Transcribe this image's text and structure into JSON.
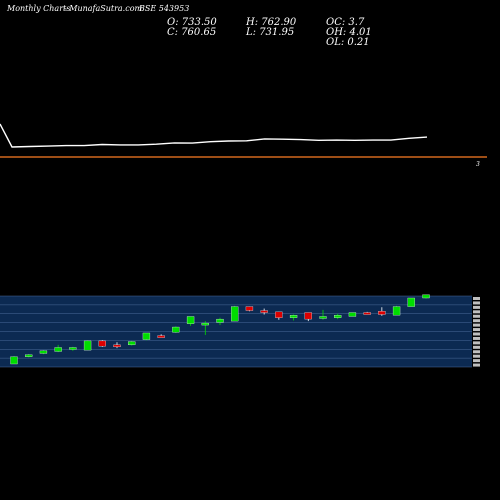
{
  "header": {
    "period": "Monthly Charts",
    "site": "- MunafaSutra.com",
    "symbol": "BSE 543953"
  },
  "ohlc": {
    "open": "O: 733.50",
    "close": "C: 760.65",
    "high": "H: 762.90",
    "low": "L: 731.95",
    "oc": "OC: 3.7",
    "oh": "OH: 4.01",
    "ol": "OL: 0.21"
  },
  "colors": {
    "background": "#000000",
    "line": "#ffffff",
    "orange_line": "#d2691e",
    "up": "#00dd00",
    "down": "#dd0000",
    "band": "#0c2a52",
    "grid": "#4a6a9a",
    "price_label": "#ffffff"
  },
  "chart_data": [
    {
      "type": "line",
      "series": [
        {
          "values": [
            1.0,
            0.0,
            0.02,
            0.04,
            0.06,
            0.06,
            0.11,
            0.09,
            0.09,
            0.12,
            0.18,
            0.17,
            0.23,
            0.26,
            0.27,
            0.35,
            0.34,
            0.32,
            0.29,
            0.3,
            0.29,
            0.3,
            0.3,
            0.38,
            0.43
          ]
        }
      ],
      "reference_line_label": "3"
    },
    {
      "type": "candlestick",
      "candles": [
        {
          "o": 0.0,
          "h": 0.12,
          "l": 0.0,
          "c": 0.11
        },
        {
          "o": 0.12,
          "h": 0.15,
          "l": 0.1,
          "c": 0.14
        },
        {
          "o": 0.16,
          "h": 0.21,
          "l": 0.15,
          "c": 0.2
        },
        {
          "o": 0.19,
          "h": 0.29,
          "l": 0.18,
          "c": 0.25
        },
        {
          "o": 0.23,
          "h": 0.26,
          "l": 0.2,
          "c": 0.25
        },
        {
          "o": 0.21,
          "h": 0.36,
          "l": 0.21,
          "c": 0.35
        },
        {
          "o": 0.35,
          "h": 0.36,
          "l": 0.26,
          "c": 0.27
        },
        {
          "o": 0.29,
          "h": 0.33,
          "l": 0.24,
          "c": 0.27
        },
        {
          "o": 0.29,
          "h": 0.35,
          "l": 0.28,
          "c": 0.34
        },
        {
          "o": 0.37,
          "h": 0.47,
          "l": 0.36,
          "c": 0.47
        },
        {
          "o": 0.43,
          "h": 0.45,
          "l": 0.41,
          "c": 0.42
        },
        {
          "o": 0.48,
          "h": 0.57,
          "l": 0.47,
          "c": 0.56
        },
        {
          "o": 0.61,
          "h": 0.72,
          "l": 0.58,
          "c": 0.72
        },
        {
          "o": 0.61,
          "h": 0.65,
          "l": 0.44,
          "c": 0.62
        },
        {
          "o": 0.63,
          "h": 0.7,
          "l": 0.59,
          "c": 0.68
        },
        {
          "o": 0.65,
          "h": 0.88,
          "l": 0.65,
          "c": 0.87
        },
        {
          "o": 0.87,
          "h": 0.87,
          "l": 0.8,
          "c": 0.81
        },
        {
          "o": 0.81,
          "h": 0.84,
          "l": 0.75,
          "c": 0.78
        },
        {
          "o": 0.79,
          "h": 0.79,
          "l": 0.67,
          "c": 0.7
        },
        {
          "o": 0.7,
          "h": 0.75,
          "l": 0.66,
          "c": 0.74
        },
        {
          "o": 0.78,
          "h": 0.78,
          "l": 0.65,
          "c": 0.68
        },
        {
          "o": 0.7,
          "h": 0.82,
          "l": 0.67,
          "c": 0.72
        },
        {
          "o": 0.7,
          "h": 0.76,
          "l": 0.68,
          "c": 0.74
        },
        {
          "o": 0.72,
          "h": 0.78,
          "l": 0.72,
          "c": 0.78
        },
        {
          "o": 0.78,
          "h": 0.79,
          "l": 0.76,
          "c": 0.77
        },
        {
          "o": 0.8,
          "h": 0.86,
          "l": 0.73,
          "c": 0.75
        },
        {
          "o": 0.74,
          "h": 0.88,
          "l": 0.74,
          "c": 0.87
        },
        {
          "o": 0.87,
          "h": 1.0,
          "l": 0.87,
          "c": 1.0
        },
        {
          "o": 1.0,
          "h": 1.05,
          "l": 0.99,
          "c": 1.05
        }
      ]
    }
  ]
}
